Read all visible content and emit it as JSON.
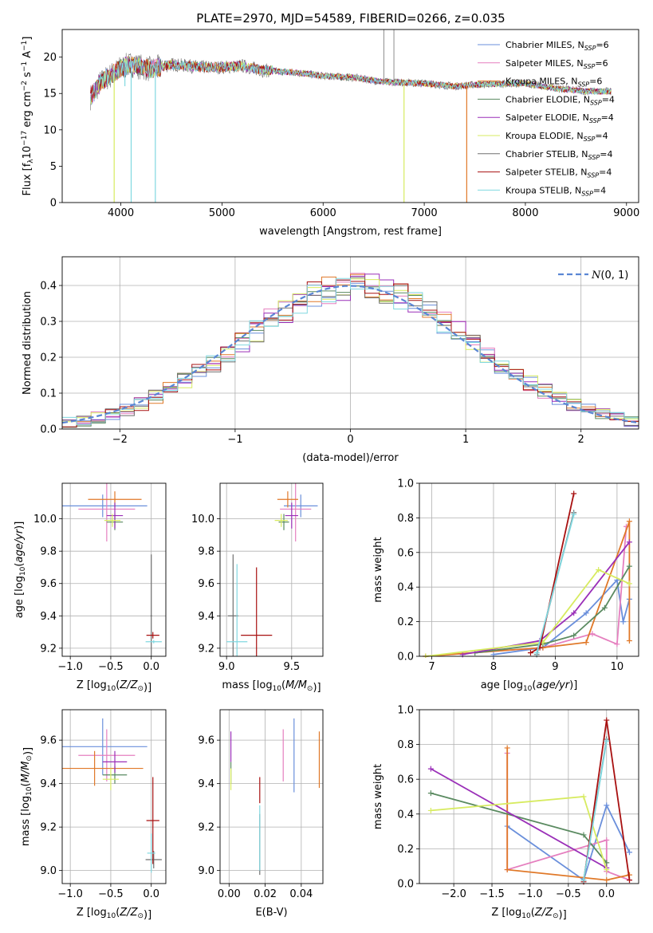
{
  "title": "PLATE=2970, MJD=54589, FIBERID=0266, z=0.035",
  "model_colors": [
    "#6a8fdb",
    "#e57fbf",
    "#e07828",
    "#5a8a60",
    "#9a2fb8",
    "#d7eb60",
    "#707070",
    "#a81010",
    "#80d8e0"
  ],
  "chart_data": [
    {
      "type": "line",
      "title": "PLATE=2970, MJD=54589, FIBERID=0266, z=0.035",
      "xlabel": "wavelength [Angstrom, rest frame]",
      "ylabel": "Flux [f_λ 10^-17 erg cm^-2 s^-1 A^-1]",
      "xlim": [
        3420,
        9120
      ],
      "ylim": [
        0,
        23.8
      ],
      "xticks": [
        "4000",
        "5000",
        "6000",
        "7000",
        "8000",
        "9000"
      ],
      "yticks": [
        "0",
        "5",
        "10",
        "15",
        "20"
      ],
      "legend_placement": "upper-right",
      "series": [
        {
          "name": "Chabrier MILES, N_SSP=6",
          "legend_main": "Chabrier MILES, N",
          "legend_tail": "=6"
        },
        {
          "name": "Salpeter MILES, N_SSP=6",
          "legend_main": "Salpeter MILES, N",
          "legend_tail": "=6"
        },
        {
          "name": "Kroupa MILES, N_SSP=6",
          "legend_main": "Kroupa MILES, N",
          "legend_tail": "=6"
        },
        {
          "name": "Chabrier ELODIE, N_SSP=4",
          "legend_main": "Chabrier ELODIE, N",
          "legend_tail": "=4"
        },
        {
          "name": "Salpeter ELODIE, N_SSP=4",
          "legend_main": "Salpeter ELODIE, N",
          "legend_tail": "=4"
        },
        {
          "name": "Kroupa ELODIE, N_SSP=4",
          "legend_main": "Kroupa ELODIE, N",
          "legend_tail": "=4"
        },
        {
          "name": "Chabrier STELIB, N_SSP=4",
          "legend_main": "Chabrier STELIB, N",
          "legend_tail": "=4"
        },
        {
          "name": "Salpeter STELIB, N_SSP=4",
          "legend_main": "Salpeter STELIB, N",
          "legend_tail": "=4"
        },
        {
          "name": "Kroupa STELIB, N_SSP=4",
          "legend_main": "Kroupa STELIB, N",
          "legend_tail": "=4"
        }
      ],
      "legend_subscript": "SSP",
      "continuum": [
        [
          3700,
          14.5
        ],
        [
          3800,
          16.5
        ],
        [
          3900,
          17.5
        ],
        [
          4000,
          18.5
        ],
        [
          4100,
          19.0
        ],
        [
          4300,
          18.3
        ],
        [
          4500,
          19.0
        ],
        [
          4800,
          18.6
        ],
        [
          5000,
          18.6
        ],
        [
          5200,
          18.8
        ],
        [
          5400,
          18.2
        ],
        [
          5600,
          18.0
        ],
        [
          5800,
          17.8
        ],
        [
          6000,
          17.4
        ],
        [
          6300,
          17.2
        ],
        [
          6600,
          16.6
        ],
        [
          7000,
          16.4
        ],
        [
          7300,
          16.0
        ],
        [
          7600,
          16.3
        ],
        [
          8000,
          16.4
        ],
        [
          8300,
          15.7
        ],
        [
          8600,
          15.3
        ],
        [
          8850,
          15.3
        ]
      ],
      "dips": [
        [
          3934,
          0
        ],
        [
          4040,
          16
        ],
        [
          4102,
          0
        ],
        [
          4341,
          0
        ],
        [
          6800,
          0
        ],
        [
          7420,
          0
        ]
      ],
      "spikes": [
        [
          6600,
          23.8
        ],
        [
          6700,
          23.8
        ]
      ]
    },
    {
      "type": "area",
      "xlabel": "(data-model)/error",
      "ylabel": "Normed distribution",
      "xlim": [
        -2.5,
        2.5
      ],
      "ylim": [
        0,
        0.48
      ],
      "xticks": [
        "−2",
        "−1",
        "0",
        "1",
        "2"
      ],
      "yticks": [
        "0.0",
        "0.1",
        "0.2",
        "0.3",
        "0.4"
      ],
      "legend_placement": "top-right",
      "legend_label": "N(0,1)",
      "bins": 40,
      "reference_curve": "standard normal N(0,1)"
    },
    {
      "type": "scatter",
      "xlabel": "Z [log10(Z/Z⊙)]",
      "ylabel": "age [log10(age/yr)]",
      "xlim": [
        -1.1,
        0.18
      ],
      "ylim": [
        9.15,
        10.22
      ],
      "xticks": [
        "−1.0",
        "−0.5",
        "0.0"
      ],
      "yticks": [
        "9.2",
        "9.4",
        "9.6",
        "9.8",
        "10.0"
      ],
      "points": [
        {
          "series": 0,
          "x": -0.6,
          "y": 10.08,
          "xerr": 0.55,
          "yerr": 0.07
        },
        {
          "series": 1,
          "x": -0.55,
          "y": 10.06,
          "xerr": 0.35,
          "yerr": 0.2
        },
        {
          "series": 2,
          "x": -0.45,
          "y": 10.12,
          "xerr": 0.33,
          "yerr": 0.05
        },
        {
          "series": 3,
          "x": -0.45,
          "y": 9.98,
          "xerr": 0.1,
          "yerr": 0.05
        },
        {
          "series": 4,
          "x": -0.45,
          "y": 10.02,
          "xerr": 0.1,
          "yerr": 0.08
        },
        {
          "series": 5,
          "x": -0.48,
          "y": 9.99,
          "xerr": 0.1,
          "yerr": 0.04
        },
        {
          "series": 6,
          "x": 0.0,
          "y": 9.4,
          "xerr": 0.01,
          "yerr": 0.38
        },
        {
          "series": 7,
          "x": 0.02,
          "y": 9.28,
          "xerr": 0.08,
          "yerr": 0.02
        },
        {
          "series": 8,
          "x": 0.03,
          "y": 9.24,
          "xerr": 0.1,
          "yerr": 0.01
        }
      ]
    },
    {
      "type": "scatter",
      "xlabel": "mass [log10(M/M⊙)]",
      "ylabel": "",
      "xlim": [
        8.95,
        9.74
      ],
      "ylim": [
        9.15,
        10.22
      ],
      "xticks": [
        "9.0",
        "9.5"
      ],
      "yticks": [
        "9.2",
        "9.4",
        "9.6",
        "9.8",
        "10.0"
      ],
      "points": [
        {
          "series": 0,
          "x": 9.57,
          "y": 10.08,
          "xerr": 0.13,
          "yerr": 0.07
        },
        {
          "series": 1,
          "x": 9.53,
          "y": 10.06,
          "xerr": 0.12,
          "yerr": 0.2
        },
        {
          "series": 2,
          "x": 9.47,
          "y": 10.12,
          "xerr": 0.08,
          "yerr": 0.05
        },
        {
          "series": 3,
          "x": 9.44,
          "y": 9.98,
          "xerr": 0.04,
          "yerr": 0.05
        },
        {
          "series": 4,
          "x": 9.5,
          "y": 10.02,
          "xerr": 0.05,
          "yerr": 0.08
        },
        {
          "series": 5,
          "x": 9.42,
          "y": 9.99,
          "xerr": 0.05,
          "yerr": 0.04
        },
        {
          "series": 6,
          "x": 9.05,
          "y": 9.4,
          "xerr": 0.04,
          "yerr": 0.38
        },
        {
          "series": 7,
          "x": 9.23,
          "y": 9.28,
          "xerr": 0.12,
          "yerr": 0.42
        },
        {
          "series": 8,
          "x": 9.08,
          "y": 9.24,
          "xerr": 0.08,
          "yerr": 0.48
        }
      ]
    },
    {
      "type": "line",
      "xlabel": "age [log10(age/yr)]",
      "ylabel": "mass weight",
      "xlim": [
        6.8,
        10.35
      ],
      "ylim": [
        0,
        1.0
      ],
      "xticks": [
        "7",
        "8",
        "9",
        "10"
      ],
      "yticks": [
        "0.0",
        "0.2",
        "0.4",
        "0.6",
        "0.8",
        "1.0"
      ],
      "series": [
        {
          "series": 0,
          "points": [
            [
              8.0,
              0.01
            ],
            [
              8.8,
              0.05
            ],
            [
              9.5,
              0.25
            ],
            [
              10.0,
              0.44
            ],
            [
              10.1,
              0.2
            ],
            [
              10.2,
              0.33
            ]
          ]
        },
        {
          "series": 1,
          "points": [
            [
              6.9,
              0.0
            ],
            [
              8.8,
              0.05
            ],
            [
              9.6,
              0.13
            ],
            [
              10.0,
              0.07
            ],
            [
              10.15,
              0.75
            ]
          ]
        },
        {
          "series": 2,
          "points": [
            [
              6.9,
              0.0
            ],
            [
              8.8,
              0.05
            ],
            [
              9.5,
              0.08
            ],
            [
              10.2,
              0.78
            ],
            [
              10.2,
              0.09
            ]
          ]
        },
        {
          "series": 3,
          "points": [
            [
              7.7,
              0.02
            ],
            [
              8.8,
              0.07
            ],
            [
              9.3,
              0.12
            ],
            [
              9.8,
              0.28
            ],
            [
              10.2,
              0.52
            ]
          ]
        },
        {
          "series": 4,
          "points": [
            [
              7.5,
              0.01
            ],
            [
              8.75,
              0.09
            ],
            [
              9.3,
              0.25
            ],
            [
              10.2,
              0.66
            ]
          ]
        },
        {
          "series": 5,
          "points": [
            [
              6.9,
              0.0
            ],
            [
              8.8,
              0.08
            ],
            [
              9.7,
              0.5
            ],
            [
              10.2,
              0.42
            ]
          ]
        },
        {
          "series": 6,
          "points": [
            [
              8.7,
              0.01
            ],
            [
              9.3,
              0.83
            ]
          ]
        },
        {
          "series": 7,
          "points": [
            [
              8.6,
              0.02
            ],
            [
              8.75,
              0.05
            ],
            [
              9.3,
              0.94
            ]
          ]
        },
        {
          "series": 8,
          "points": [
            [
              8.7,
              0.02
            ],
            [
              9.3,
              0.82
            ]
          ]
        }
      ]
    },
    {
      "type": "scatter",
      "xlabel": "Z [log10(Z/Z⊙)]",
      "ylabel": "mass [log10(M/M⊙)]",
      "xlim": [
        -1.1,
        0.18
      ],
      "ylim": [
        8.94,
        9.74
      ],
      "xticks": [
        "−1.0",
        "−0.5",
        "0.0"
      ],
      "yticks": [
        "9.0",
        "9.2",
        "9.4",
        "9.6"
      ],
      "points": [
        {
          "series": 0,
          "x": -0.6,
          "y": 9.57,
          "xerr": 0.55,
          "yerr": 0.13
        },
        {
          "series": 1,
          "x": -0.55,
          "y": 9.53,
          "xerr": 0.35,
          "yerr": 0.12
        },
        {
          "series": 2,
          "x": -0.7,
          "y": 9.47,
          "xerr": 0.6,
          "yerr": 0.08
        },
        {
          "series": 3,
          "x": -0.45,
          "y": 9.44,
          "xerr": 0.15,
          "yerr": 0.04
        },
        {
          "series": 4,
          "x": -0.45,
          "y": 9.5,
          "xerr": 0.15,
          "yerr": 0.05
        },
        {
          "series": 5,
          "x": -0.5,
          "y": 9.42,
          "xerr": 0.1,
          "yerr": 0.05
        },
        {
          "series": 6,
          "x": 0.03,
          "y": 9.05,
          "xerr": 0.1,
          "yerr": 0.04
        },
        {
          "series": 7,
          "x": 0.02,
          "y": 9.23,
          "xerr": 0.08,
          "yerr": 0.2
        },
        {
          "series": 8,
          "x": 0.0,
          "y": 9.08,
          "xerr": 0.05,
          "yerr": 0.09
        }
      ]
    },
    {
      "type": "scatter",
      "xlabel": "E(B-V)",
      "ylabel": "",
      "xlim": [
        -0.005,
        0.052
      ],
      "ylim": [
        8.94,
        9.74
      ],
      "xticks": [
        "0.00",
        "0.02",
        "0.04"
      ],
      "yticks": [
        "9.0",
        "9.2",
        "9.4",
        "9.6"
      ],
      "points": [
        {
          "series": 0,
          "x": 0.036,
          "y": 9.53,
          "yerr": 0.17
        },
        {
          "series": 1,
          "x": 0.03,
          "y": 9.53,
          "yerr": 0.12
        },
        {
          "series": 2,
          "x": 0.05,
          "y": 9.51,
          "yerr": 0.13
        },
        {
          "series": 3,
          "x": 0.001,
          "y": 9.45,
          "yerr": 0.05
        },
        {
          "series": 4,
          "x": 0.001,
          "y": 9.57,
          "yerr": 0.07
        },
        {
          "series": 5,
          "x": 0.001,
          "y": 9.42,
          "yerr": 0.05
        },
        {
          "series": 6,
          "x": 0.017,
          "y": 9.12,
          "yerr": 0.14
        },
        {
          "series": 7,
          "x": 0.017,
          "y": 9.37,
          "yerr": 0.06
        },
        {
          "series": 8,
          "x": 0.017,
          "y": 9.15,
          "yerr": 0.15
        }
      ]
    },
    {
      "type": "line",
      "xlabel": "Z [log10(Z/Z⊙)]",
      "ylabel": "mass weight",
      "xlim": [
        -2.45,
        0.42
      ],
      "ylim": [
        0,
        1.0
      ],
      "xticks": [
        "−2.0",
        "−1.5",
        "−1.0",
        "−0.5",
        "0.0"
      ],
      "yticks": [
        "0.0",
        "0.2",
        "0.4",
        "0.6",
        "0.8",
        "1.0"
      ],
      "series": [
        {
          "series": 0,
          "points": [
            [
              -1.3,
              0.33
            ],
            [
              -0.3,
              0.02
            ],
            [
              0.0,
              0.45
            ],
            [
              0.3,
              0.18
            ]
          ]
        },
        {
          "series": 1,
          "points": [
            [
              -1.3,
              0.75
            ],
            [
              -1.3,
              0.08
            ],
            [
              0.0,
              0.25
            ],
            [
              0.0,
              0.07
            ],
            [
              0.3,
              0.02
            ]
          ]
        },
        {
          "series": 2,
          "points": [
            [
              -1.3,
              0.78
            ],
            [
              -1.3,
              0.08
            ],
            [
              0.0,
              0.02
            ],
            [
              0.3,
              0.05
            ]
          ]
        },
        {
          "series": 3,
          "points": [
            [
              -2.3,
              0.52
            ],
            [
              -0.3,
              0.28
            ],
            [
              0.0,
              0.12
            ]
          ]
        },
        {
          "series": 4,
          "points": [
            [
              -2.3,
              0.66
            ],
            [
              0.0,
              0.09
            ]
          ]
        },
        {
          "series": 5,
          "points": [
            [
              -2.3,
              0.42
            ],
            [
              -0.3,
              0.5
            ],
            [
              0.0,
              0.08
            ]
          ]
        },
        {
          "series": 6,
          "points": [
            [
              -0.3,
              0.02
            ],
            [
              0.0,
              0.83
            ]
          ]
        },
        {
          "series": 7,
          "points": [
            [
              -0.3,
              0.01
            ],
            [
              0.0,
              0.94
            ],
            [
              0.3,
              0.02
            ]
          ]
        },
        {
          "series": 8,
          "points": [
            [
              -0.3,
              0.02
            ],
            [
              0.0,
              0.82
            ]
          ]
        }
      ]
    }
  ]
}
